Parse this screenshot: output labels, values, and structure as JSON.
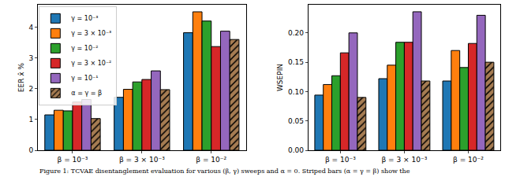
{
  "chart_data": [
    {
      "type": "bar",
      "y_label": "EER x̂ %",
      "categories": [
        "β = 10⁻³",
        "β = 3 × 10⁻³",
        "β = 10⁻²"
      ],
      "series": [
        {
          "name": "γ = 10⁻³",
          "color": "#1f77b4",
          "values": [
            1.15,
            1.72,
            3.82
          ]
        },
        {
          "name": "γ = 3 × 10⁻³",
          "color": "#ff7f0e",
          "values": [
            1.3,
            1.98,
            4.5
          ]
        },
        {
          "name": "γ = 10⁻²",
          "color": "#2ca02c",
          "values": [
            1.28,
            2.22,
            4.2
          ]
        },
        {
          "name": "γ = 3 × 10⁻²",
          "color": "#d62728",
          "values": [
            1.57,
            2.3,
            3.37
          ]
        },
        {
          "name": "γ = 10⁻¹",
          "color": "#9467bd",
          "values": [
            1.65,
            2.58,
            3.87
          ]
        },
        {
          "name": "α = γ = β",
          "color": "#a67c52",
          "marker": "hatched",
          "values": [
            1.03,
            1.97,
            3.6
          ]
        }
      ],
      "ylim": [
        0,
        4.73
      ],
      "yticks": [
        0,
        1,
        2,
        3,
        4
      ],
      "grid": false,
      "legend": "upper left"
    },
    {
      "type": "bar",
      "y_label": "WSEPIN",
      "categories": [
        "β = 10⁻³",
        "β = 3 × 10⁻³",
        "β = 10⁻²"
      ],
      "series": [
        {
          "name": "γ = 10⁻³",
          "color": "#1f77b4",
          "values": [
            0.094,
            0.122,
            0.118
          ]
        },
        {
          "name": "γ = 3 × 10⁻³",
          "color": "#ff7f0e",
          "values": [
            0.112,
            0.145,
            0.17
          ]
        },
        {
          "name": "γ = 10⁻²",
          "color": "#2ca02c",
          "values": [
            0.127,
            0.184,
            0.141
          ]
        },
        {
          "name": "γ = 3 × 10⁻²",
          "color": "#d62728",
          "values": [
            0.166,
            0.184,
            0.182
          ]
        },
        {
          "name": "γ = 10⁻¹",
          "color": "#9467bd",
          "values": [
            0.2,
            0.236,
            0.23
          ]
        },
        {
          "name": "α = γ = β",
          "color": "#a67c52",
          "marker": "hatched",
          "values": [
            0.09,
            0.118,
            0.15
          ]
        }
      ],
      "ylim": [
        0,
        0.248
      ],
      "yticks": [
        {
          "value": 0,
          "label": "0.00"
        },
        {
          "value": 0.05,
          "label": "0.05"
        },
        {
          "value": 0.1,
          "label": "0.10"
        },
        {
          "value": 0.15,
          "label": "0.15"
        },
        {
          "value": 0.2,
          "label": "0.20"
        }
      ],
      "grid": false
    }
  ],
  "caption": "Figure 1: TCVAE disentanglement evaluation for various (β, γ) sweeps and α = 0. Striped bars (α = γ = β) show the"
}
